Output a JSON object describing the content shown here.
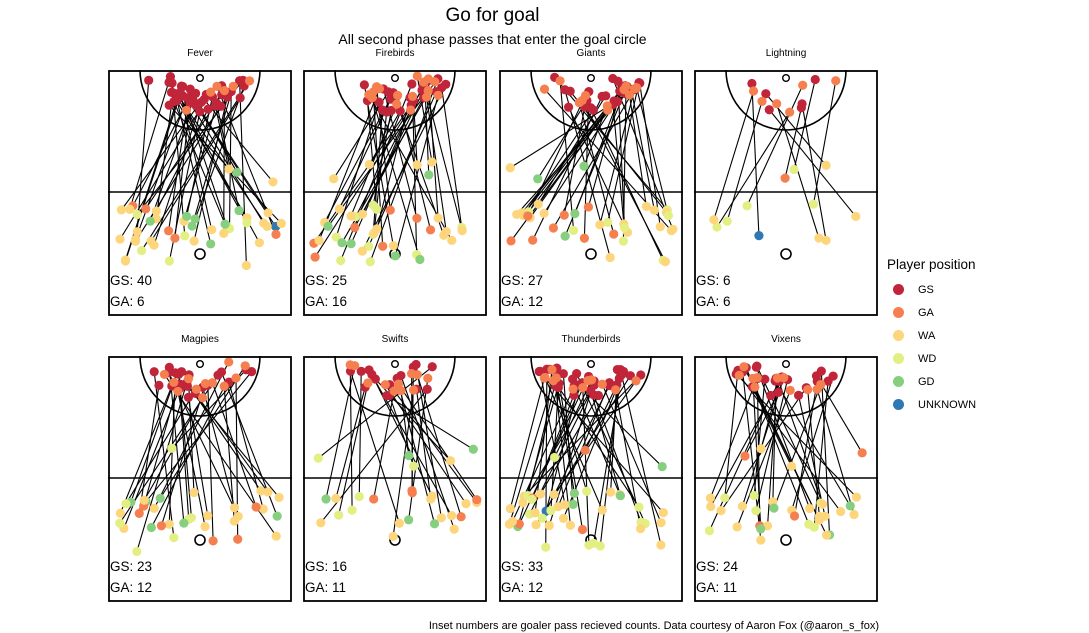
{
  "title": "Go for goal",
  "subtitle": "All second phase passes that enter the goal circle",
  "caption": "Inset numbers are goaler pass recieved counts. Data courtesy of Aaron Fox (@aaron_s_fox)",
  "legend": {
    "title": "Player position",
    "items": [
      {
        "label": "GS",
        "color": "#c0253a"
      },
      {
        "label": "GA",
        "color": "#f57f4f"
      },
      {
        "label": "WA",
        "color": "#fdd57a"
      },
      {
        "label": "WD",
        "color": "#e3ef82"
      },
      {
        "label": "GD",
        "color": "#86cf7f"
      },
      {
        "label": "UNKNOWN",
        "color": "#2f78b4"
      }
    ]
  },
  "chart_data": {
    "type": "scatter",
    "panels": [
      {
        "team": "Fever",
        "gs_label": "GS: 40",
        "ga_label": "GA: 6",
        "gs": 40,
        "ga": 6
      },
      {
        "team": "Firebirds",
        "gs_label": "GS: 25",
        "ga_label": "GA: 16",
        "gs": 25,
        "ga": 16
      },
      {
        "team": "Giants",
        "gs_label": "GS: 27",
        "ga_label": "GA: 12",
        "gs": 27,
        "ga": 12
      },
      {
        "team": "Lightning",
        "gs_label": "GS: 6",
        "ga_label": "GA: 6",
        "gs": 6,
        "ga": 6
      },
      {
        "team": "Magpies",
        "gs_label": "GS: 23",
        "ga_label": "GA: 12",
        "gs": 23,
        "ga": 12
      },
      {
        "team": "Swifts",
        "gs_label": "GS: 16",
        "ga_label": "GA: 11",
        "gs": 16,
        "ga": 11
      },
      {
        "team": "Thunderbirds",
        "gs_label": "GS: 33",
        "ga_label": "GA: 12",
        "gs": 33,
        "ga": 12
      },
      {
        "team": "Vixens",
        "gs_label": "GS: 24",
        "ga_label": "GA: 11",
        "gs": 24,
        "ga": 11
      }
    ]
  }
}
